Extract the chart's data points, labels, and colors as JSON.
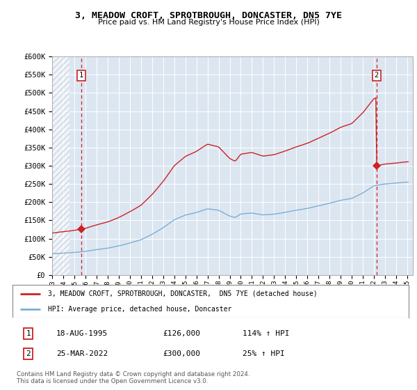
{
  "title": "3, MEADOW CROFT, SPROTBROUGH, DONCASTER, DN5 7YE",
  "subtitle": "Price paid vs. HM Land Registry's House Price Index (HPI)",
  "hpi_label": "HPI: Average price, detached house, Doncaster",
  "property_label": "3, MEADOW CROFT, SPROTBROUGH, DONCASTER,  DN5 7YE (detached house)",
  "footer": "Contains HM Land Registry data © Crown copyright and database right 2024.\nThis data is licensed under the Open Government Licence v3.0.",
  "ylim": [
    0,
    600000
  ],
  "yticks": [
    0,
    50000,
    100000,
    150000,
    200000,
    250000,
    300000,
    350000,
    400000,
    450000,
    500000,
    550000,
    600000
  ],
  "sale1_price": 126000,
  "sale2_price": 300000,
  "sale1_date": "18-AUG-1995",
  "sale2_date": "25-MAR-2022",
  "sale1_hpi_pct": "114% ↑ HPI",
  "sale2_hpi_pct": "25% ↑ HPI",
  "sale1_x": 1995.625,
  "sale2_x": 2022.23,
  "hpi_color": "#7bafd4",
  "property_color": "#cc2222",
  "background_color": "#dce6f1",
  "grid_color": "#ffffff",
  "dashed_color": "#cc2222",
  "annotation_box_color": "#cc2222",
  "hatch_fill_color": "#c8d4e0"
}
